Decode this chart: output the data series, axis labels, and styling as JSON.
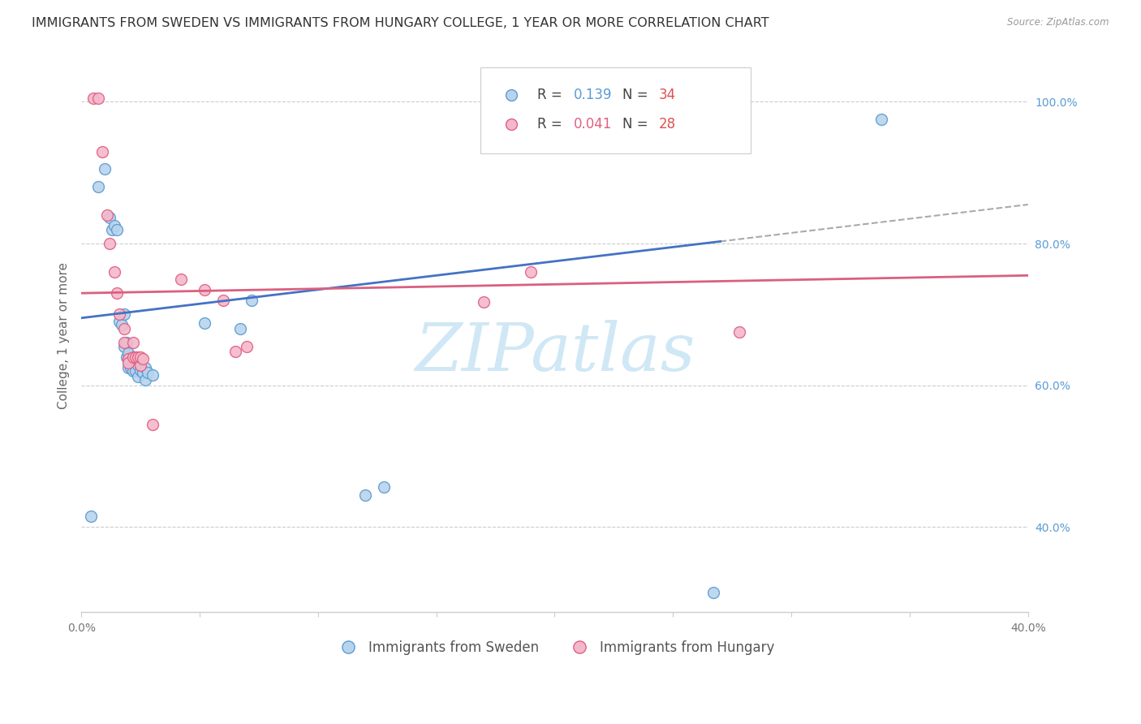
{
  "title": "IMMIGRANTS FROM SWEDEN VS IMMIGRANTS FROM HUNGARY COLLEGE, 1 YEAR OR MORE CORRELATION CHART",
  "source": "Source: ZipAtlas.com",
  "ylabel": "College, 1 year or more",
  "xlim": [
    0.0,
    0.4
  ],
  "ylim": [
    0.28,
    1.06
  ],
  "yticks_right": [
    0.4,
    0.6,
    0.8,
    1.0
  ],
  "ytick_labels_right": [
    "40.0%",
    "60.0%",
    "80.0%",
    "100.0%"
  ],
  "xticks": [
    0.0,
    0.05,
    0.1,
    0.15,
    0.2,
    0.25,
    0.3,
    0.35,
    0.4
  ],
  "xtick_labels": [
    "0.0%",
    "",
    "",
    "",
    "",
    "",
    "",
    "",
    "40.0%"
  ],
  "sweden_fill": "#b8d4ec",
  "hungary_fill": "#f4b8cc",
  "sweden_edge": "#5b9bd5",
  "hungary_edge": "#e06080",
  "trend_sweden_color": "#4472c4",
  "trend_hungary_color": "#d96080",
  "dashed_color": "#aaaaaa",
  "R_sweden": 0.139,
  "N_sweden": 34,
  "R_hungary": 0.041,
  "N_hungary": 28,
  "sweden_x": [
    0.004,
    0.007,
    0.01,
    0.012,
    0.013,
    0.014,
    0.015,
    0.016,
    0.017,
    0.018,
    0.018,
    0.019,
    0.019,
    0.02,
    0.02,
    0.021,
    0.022,
    0.022,
    0.023,
    0.024,
    0.024,
    0.025,
    0.026,
    0.027,
    0.027,
    0.028,
    0.03,
    0.052,
    0.067,
    0.072,
    0.12,
    0.128,
    0.267,
    0.338
  ],
  "sweden_y": [
    0.415,
    0.88,
    0.905,
    0.837,
    0.82,
    0.825,
    0.82,
    0.69,
    0.685,
    0.7,
    0.655,
    0.66,
    0.64,
    0.645,
    0.625,
    0.625,
    0.62,
    0.64,
    0.62,
    0.628,
    0.612,
    0.622,
    0.618,
    0.625,
    0.608,
    0.618,
    0.615,
    0.688,
    0.68,
    0.72,
    0.445,
    0.457,
    0.308,
    0.975
  ],
  "hungary_x": [
    0.005,
    0.007,
    0.009,
    0.011,
    0.012,
    0.014,
    0.015,
    0.016,
    0.018,
    0.018,
    0.02,
    0.02,
    0.022,
    0.022,
    0.023,
    0.024,
    0.025,
    0.025,
    0.026,
    0.03,
    0.042,
    0.052,
    0.06,
    0.065,
    0.07,
    0.17,
    0.19,
    0.278
  ],
  "hungary_y": [
    1.005,
    1.005,
    0.93,
    0.84,
    0.8,
    0.76,
    0.73,
    0.7,
    0.68,
    0.66,
    0.638,
    0.632,
    0.66,
    0.64,
    0.64,
    0.64,
    0.628,
    0.64,
    0.638,
    0.545,
    0.75,
    0.735,
    0.72,
    0.648,
    0.655,
    0.718,
    0.76,
    0.675
  ],
  "background_color": "#ffffff",
  "watermark_text": "ZIPatlas",
  "watermark_color": "#d0e8f5",
  "marker_size": 100,
  "title_fontsize": 11.5,
  "axis_label_fontsize": 11,
  "tick_fontsize": 10,
  "legend_fontsize": 12,
  "blue_text_color": "#5b9bd5",
  "pink_text_color": "#e06080",
  "red_N_color": "#e05050"
}
